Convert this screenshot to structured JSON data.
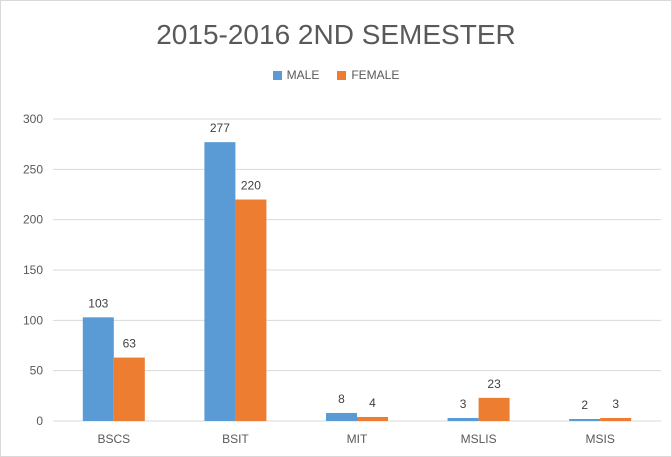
{
  "chart_data": {
    "type": "bar",
    "title": "2015-2016 2ND SEMESTER",
    "categories": [
      "BSCS",
      "BSIT",
      "MIT",
      "MSLIS",
      "MSIS"
    ],
    "series": [
      {
        "name": "MALE",
        "color": "#5b9bd5",
        "values": [
          103,
          277,
          8,
          3,
          2
        ]
      },
      {
        "name": "FEMALE",
        "color": "#ed7d31",
        "values": [
          63,
          220,
          4,
          23,
          3
        ]
      }
    ],
    "ylim": [
      0,
      300
    ],
    "yticks": [
      0,
      50,
      100,
      150,
      200,
      250,
      300
    ],
    "grid": true,
    "legend_position": "top"
  }
}
